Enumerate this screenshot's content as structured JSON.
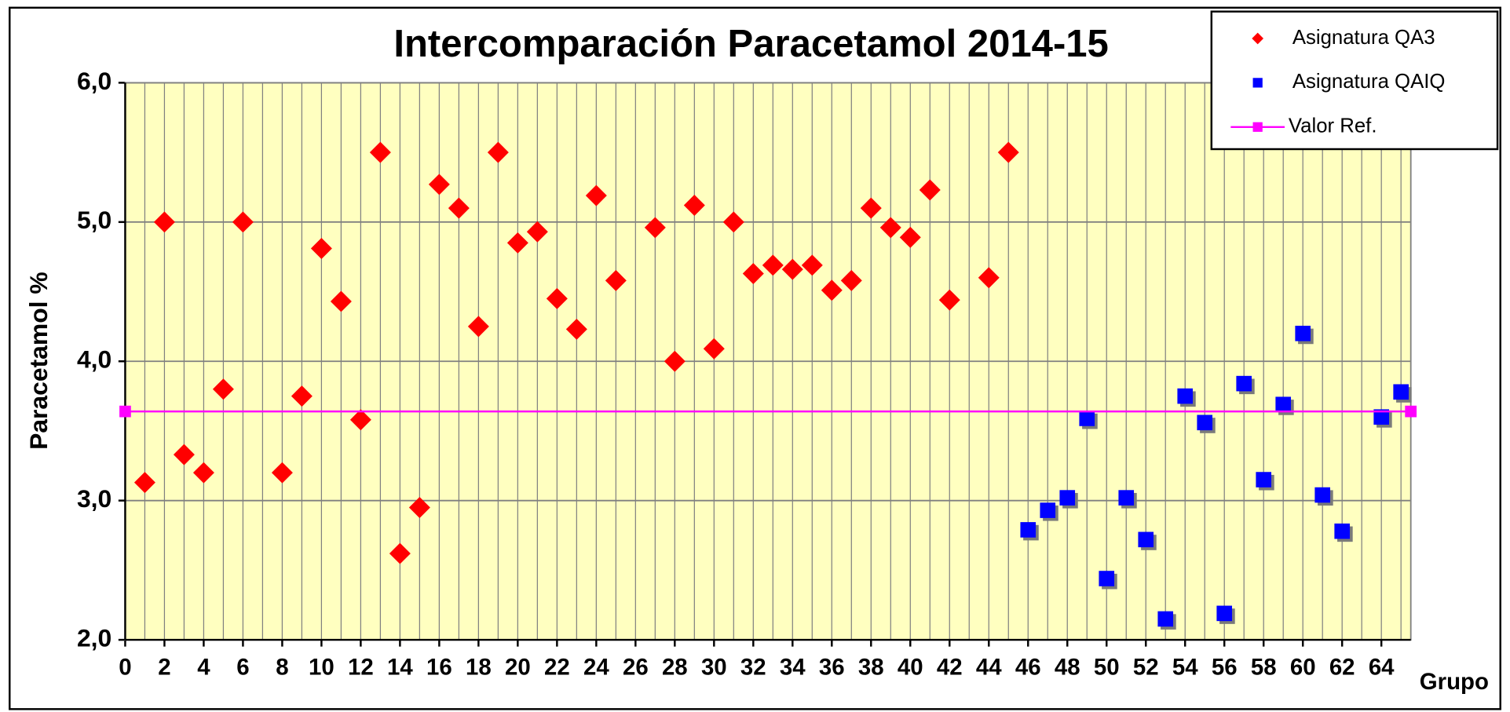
{
  "chart_data": {
    "type": "scatter",
    "title": "Intercomparación Paracetamol 2014-15",
    "x_label": "Grupo",
    "y_label": "Paracetamol %",
    "xlim": [
      0,
      65.5
    ],
    "xticks": [
      0,
      2,
      4,
      6,
      8,
      10,
      12,
      14,
      16,
      18,
      20,
      22,
      24,
      26,
      28,
      30,
      32,
      34,
      36,
      38,
      40,
      42,
      44,
      46,
      48,
      50,
      52,
      54,
      56,
      58,
      60,
      62,
      64
    ],
    "x_minor_step": 1,
    "ylim": [
      2,
      6
    ],
    "yticks": [
      {
        "value": 2,
        "label": "2,0"
      },
      {
        "value": 3,
        "label": "3,0"
      },
      {
        "value": 4,
        "label": "4,0"
      },
      {
        "value": 5,
        "label": "5,0"
      },
      {
        "value": 6,
        "label": "6,0"
      }
    ],
    "grid": true,
    "legend": "top-right",
    "plot_background": "#ffffc0",
    "series": [
      {
        "name": "Asignatura QA3",
        "color": "#ff0000",
        "marker": "diamond",
        "x": [
          1,
          2,
          3,
          4,
          5,
          6,
          8,
          9,
          10,
          11,
          12,
          13,
          14,
          15,
          16,
          17,
          18,
          19,
          20,
          21,
          22,
          23,
          24,
          25,
          27,
          28,
          29,
          30,
          31,
          32,
          33,
          34,
          35,
          36,
          37,
          38,
          39,
          40,
          41,
          42,
          44,
          45
        ],
        "values": [
          3.13,
          5.0,
          3.33,
          3.2,
          3.8,
          5.0,
          3.2,
          3.75,
          4.81,
          4.43,
          3.58,
          5.5,
          2.62,
          2.95,
          5.27,
          5.1,
          4.25,
          5.5,
          4.85,
          4.93,
          4.45,
          4.23,
          5.19,
          4.58,
          4.96,
          4.0,
          5.12,
          4.09,
          5.0,
          4.63,
          4.69,
          4.66,
          4.69,
          4.51,
          4.58,
          5.1,
          4.96,
          4.89,
          5.23,
          4.44,
          4.6,
          5.5
        ]
      },
      {
        "name": "Asignatura QAIQ",
        "color": "#0000ff",
        "marker": "square",
        "x": [
          46,
          47,
          48,
          49,
          50,
          51,
          52,
          53,
          54,
          55,
          56,
          57,
          58,
          59,
          60,
          61,
          62,
          64,
          65
        ],
        "values": [
          2.79,
          2.93,
          3.02,
          3.59,
          2.44,
          3.02,
          2.72,
          2.15,
          3.75,
          3.56,
          2.19,
          3.84,
          3.15,
          3.69,
          4.2,
          3.04,
          2.78,
          3.6,
          3.78
        ]
      },
      {
        "name": "Valor Ref.",
        "color": "#ff00ff",
        "marker": "square",
        "line": true,
        "x": [
          0,
          65.5
        ],
        "values": [
          3.64,
          3.64
        ]
      }
    ]
  }
}
